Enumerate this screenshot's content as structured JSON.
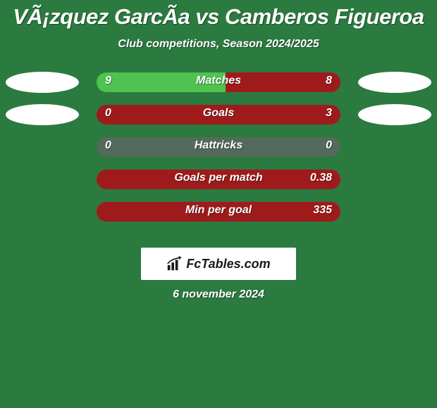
{
  "background_color": "#2b7a3f",
  "title": "VÃ¡zquez GarcÃ­a vs Camberos Figueroa",
  "subtitle": "Club competitions, Season 2024/2025",
  "left_fill_color": "#4fc24f",
  "right_fill_color": "#9f1b1b",
  "track_color": "#546a5a",
  "oval_color": "#ffffff",
  "rows": [
    {
      "label": "Matches",
      "left_val": "9",
      "right_val": "8",
      "left_pct": 53,
      "right_pct": 47,
      "show_ovals": true
    },
    {
      "label": "Goals",
      "left_val": "0",
      "right_val": "3",
      "left_pct": 0,
      "right_pct": 100,
      "show_ovals": true
    },
    {
      "label": "Hattricks",
      "left_val": "0",
      "right_val": "0",
      "left_pct": 0,
      "right_pct": 0,
      "show_ovals": false
    },
    {
      "label": "Goals per match",
      "left_val": "",
      "right_val": "0.38",
      "left_pct": 0,
      "right_pct": 100,
      "show_ovals": false
    },
    {
      "label": "Min per goal",
      "left_val": "",
      "right_val": "335",
      "left_pct": 0,
      "right_pct": 100,
      "show_ovals": false
    }
  ],
  "logo_text": "FcTables.com",
  "date_text": "6 november 2024"
}
